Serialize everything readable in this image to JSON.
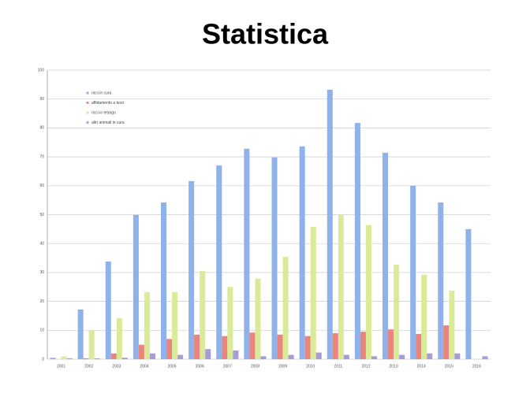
{
  "chart_data": {
    "type": "bar",
    "title": "Statistica",
    "categories": [
      "2001",
      "2002",
      "2003",
      "2004",
      "2005",
      "2006",
      "2007",
      "2008",
      "2009",
      "2010",
      "2011",
      "2012",
      "2013",
      "2014",
      "2015",
      "2016"
    ],
    "series": [
      {
        "name": "ricci in cura",
        "color": "#8fb2ea",
        "values": [
          0.5,
          17.2,
          33.8,
          49.9,
          54.2,
          61.6,
          67,
          72.8,
          69.8,
          73.6,
          93.2,
          81.7,
          71.4,
          60,
          54.2,
          45
        ]
      },
      {
        "name": "affidamento a terzi",
        "color": "#e9857c",
        "values": [
          0,
          0.3,
          2,
          5,
          7,
          8.5,
          8,
          9.2,
          8.5,
          8,
          9,
          9.5,
          10.3,
          8.7,
          11.7,
          0
        ]
      },
      {
        "name": "ricci in letargo",
        "color": "#d9eb98",
        "values": [
          1,
          10,
          14.2,
          23.2,
          23.2,
          30.5,
          25,
          27.8,
          35.4,
          45.8,
          50,
          46.4,
          32.7,
          29.2,
          23.7,
          0
        ]
      },
      {
        "name": "altri animali in cura",
        "color": "#a89cd8",
        "values": [
          0.3,
          0.3,
          0.5,
          2,
          1.5,
          3.5,
          3,
          1,
          1.5,
          2.3,
          1.5,
          1,
          1.5,
          2,
          2,
          1
        ]
      }
    ],
    "ylim": [
      0,
      100
    ],
    "yticks": [
      0,
      10,
      20,
      30,
      40,
      50,
      60,
      70,
      80,
      90,
      100
    ],
    "grid": true
  }
}
